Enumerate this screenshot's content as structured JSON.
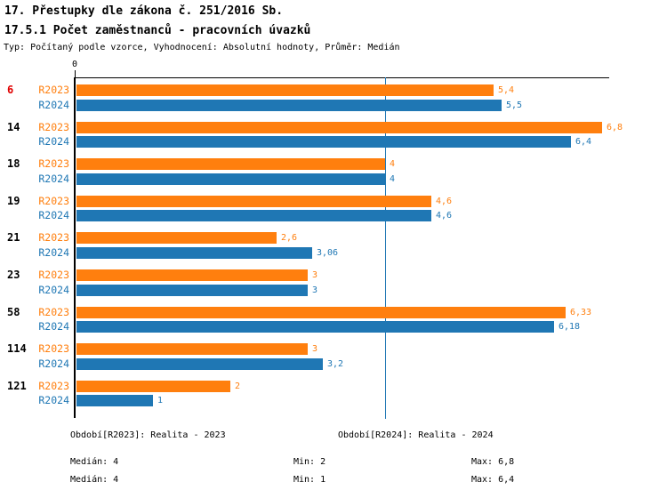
{
  "header": {
    "title": "17. Přestupky dle zákona č. 251/2016 Sb.",
    "subtitle": "17.5.1 Počet zaměstnanců - pracovních úvazků",
    "meta": "Typ: Počítaný podle vzorce, Vyhodnocení: Absolutní hodnoty, Průměr: Medián"
  },
  "chart_data": {
    "type": "bar",
    "orientation": "horizontal",
    "title": "17.5.1 Počet zaměstnanců - pracovních úvazků",
    "x_axis": {
      "origin_tick_label": "0",
      "min": 0,
      "max_visible": 6.9,
      "gridlines": false
    },
    "median_reference_line": {
      "value": 4,
      "color": "#1f77b4"
    },
    "categories": [
      "6",
      "14",
      "18",
      "19",
      "21",
      "23",
      "58",
      "114",
      "121"
    ],
    "highlighted_categories": [
      "6"
    ],
    "category_color": "#000000",
    "highlight_color": "#e00000",
    "series": [
      {
        "name": "R2023",
        "color": "#ff7f0e",
        "values": [
          5.4,
          6.8,
          4,
          4.6,
          2.6,
          3,
          6.33,
          3,
          2
        ],
        "value_labels": [
          "5,4",
          "6,8",
          "4",
          "4,6",
          "2,6",
          "3",
          "6,33",
          "3",
          "2"
        ]
      },
      {
        "name": "R2024",
        "color": "#1f77b4",
        "values": [
          5.5,
          6.4,
          4,
          4.6,
          3.06,
          3,
          6.18,
          3.2,
          1
        ],
        "value_labels": [
          "5,5",
          "6,4",
          "4",
          "4,6",
          "3,06",
          "3",
          "6,18",
          "3,2",
          "1"
        ]
      }
    ],
    "legend_position": "bottom"
  },
  "legend": {
    "r2023": "Období[R2023]: Realita - 2023",
    "r2024": "Období[R2024]: Realita - 2024"
  },
  "stats": {
    "r2023": {
      "median": "Medián: 4",
      "min": "Min: 2",
      "max": "Max: 6,8"
    },
    "r2024": {
      "median": "Medián: 4",
      "min": "Min: 1",
      "max": "Max: 6,4"
    }
  },
  "colors": {
    "r2023": "#ff7f0e",
    "r2024": "#1f77b4",
    "highlight": "#e00000",
    "axis": "#000000"
  }
}
